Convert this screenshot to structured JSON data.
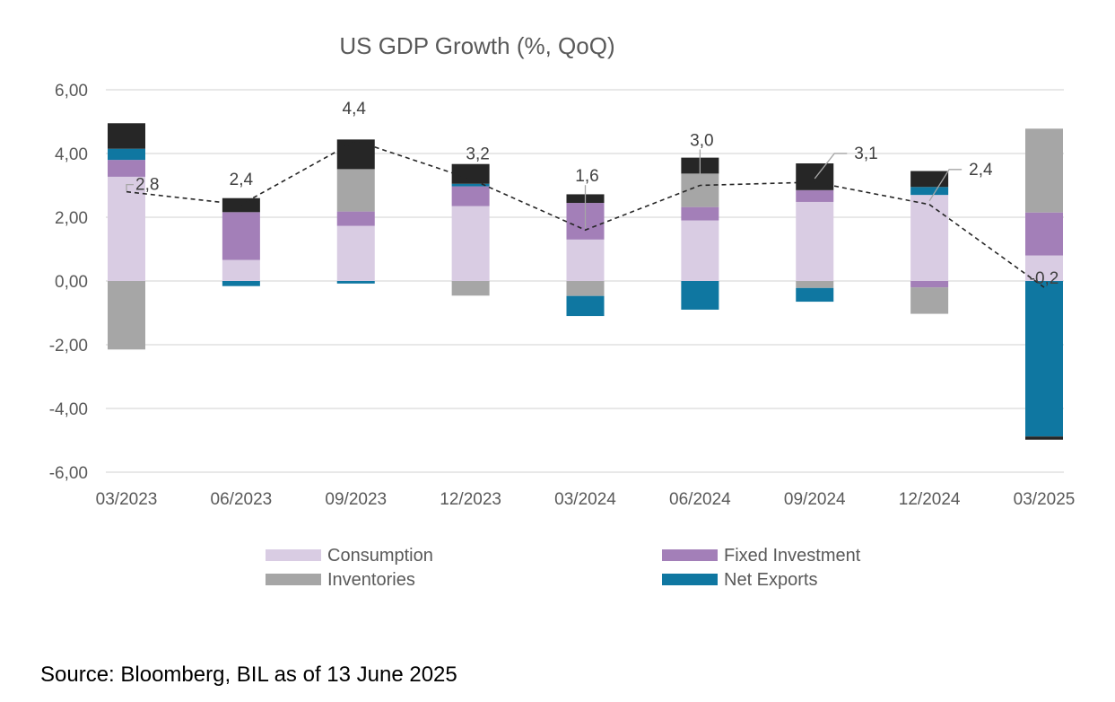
{
  "chart_data": {
    "type": "bar",
    "stacked": true,
    "title": "US GDP Growth (%, QoQ)",
    "categories": [
      "03/2023",
      "06/2023",
      "09/2023",
      "12/2023",
      "03/2024",
      "06/2024",
      "09/2024",
      "12/2024",
      "03/2025"
    ],
    "ylim": [
      -6,
      6
    ],
    "yticks": [
      6,
      4,
      2,
      0,
      -2,
      -4,
      -6
    ],
    "ytick_labels": [
      "6,00",
      "4,00",
      "2,00",
      "0,00",
      "-2,00",
      "-4,00",
      "-6,00"
    ],
    "grid": true,
    "legend_position": "bottom",
    "series": [
      {
        "name": "Consumption",
        "color": "#d9cce3",
        "values": [
          3.27,
          0.66,
          1.73,
          2.35,
          1.3,
          1.9,
          2.48,
          2.7,
          0.8
        ]
      },
      {
        "name": "Fixed Investment",
        "color": "#a37fb8",
        "values": [
          0.53,
          1.5,
          0.45,
          0.62,
          1.15,
          0.42,
          0.37,
          -0.2,
          1.35
        ]
      },
      {
        "name": "Inventories",
        "color": "#a6a6a6",
        "values": [
          -2.15,
          0.0,
          1.33,
          -0.46,
          -0.47,
          1.05,
          -0.22,
          -0.83,
          2.63
        ]
      },
      {
        "name": "Net Exports",
        "color": "#0f77a1",
        "values": [
          0.35,
          -0.16,
          -0.08,
          0.08,
          -0.63,
          -0.9,
          -0.43,
          0.25,
          -4.88
        ]
      },
      {
        "name": "",
        "color": "#262626",
        "values": [
          0.8,
          0.44,
          0.93,
          0.62,
          0.27,
          0.5,
          0.84,
          0.5,
          -0.1
        ]
      }
    ],
    "total": {
      "values": [
        2.8,
        2.4,
        4.4,
        3.2,
        1.6,
        3.0,
        3.1,
        2.4,
        -0.2
      ],
      "labels": [
        "2,8",
        "2,4",
        "4,4",
        "3,2",
        "1,6",
        "3,0",
        "3,1",
        "2,4",
        "-0,2"
      ],
      "line_style": "dashed",
      "color": "#262626"
    },
    "legend": [
      {
        "name": "Consumption",
        "color": "#d9cce3"
      },
      {
        "name": "Fixed Investment",
        "color": "#a37fb8"
      },
      {
        "name": "Inventories",
        "color": "#a6a6a6"
      },
      {
        "name": "Net Exports",
        "color": "#0f77a1"
      }
    ]
  },
  "source": "Source: Bloomberg, BIL as of 13 June 2025"
}
